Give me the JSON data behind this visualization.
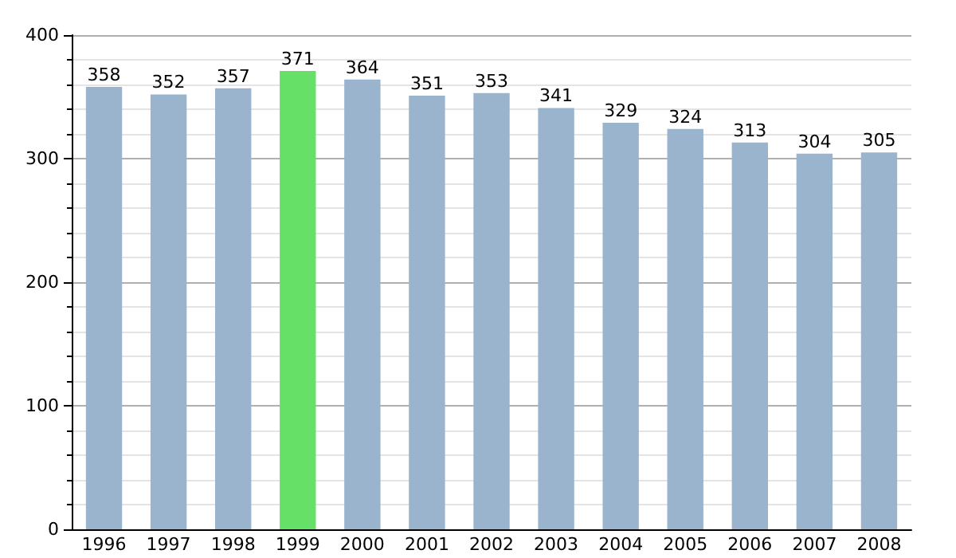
{
  "chart_data": {
    "type": "bar",
    "categories": [
      "1996",
      "1997",
      "1998",
      "1999",
      "2000",
      "2001",
      "2002",
      "2003",
      "2004",
      "2005",
      "2006",
      "2007",
      "2008"
    ],
    "values": [
      358,
      352,
      357,
      371,
      364,
      351,
      353,
      341,
      329,
      324,
      313,
      304,
      305
    ],
    "colors": [
      "#9ab4cd",
      "#9ab4cd",
      "#9ab4cd",
      "#66e066",
      "#9ab4cd",
      "#9ab4cd",
      "#9ab4cd",
      "#9ab4cd",
      "#9ab4cd",
      "#9ab4cd",
      "#9ab4cd",
      "#9ab4cd",
      "#9ab4cd"
    ],
    "ylim": [
      0,
      400
    ],
    "yticks": [
      0,
      100,
      200,
      300,
      400
    ],
    "grid": "y",
    "data_labels": true
  }
}
